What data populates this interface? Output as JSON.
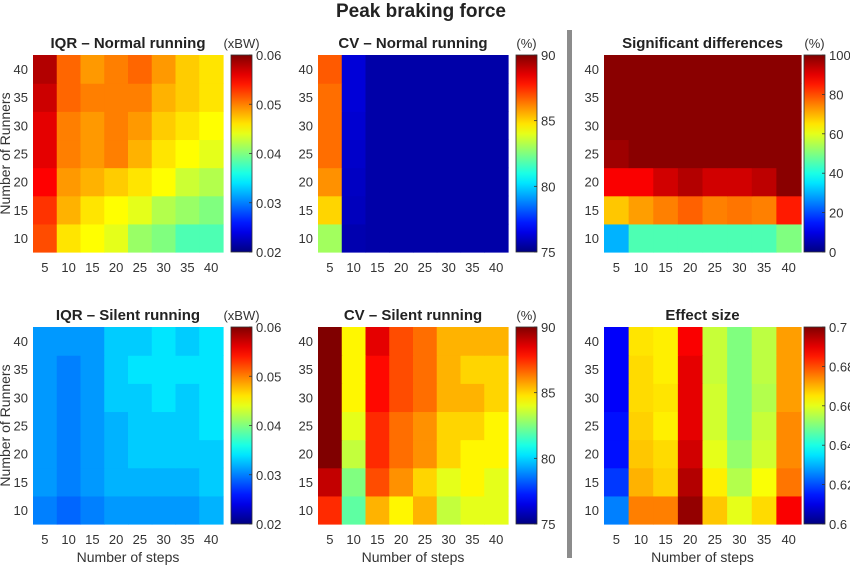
{
  "figure": {
    "title": "Peak braking force",
    "divider_color": "#8c8c8c"
  },
  "chart_data": [
    {
      "type": "heatmap",
      "title": "IQR – Normal running",
      "unit": "(xBW)",
      "xlabel": "",
      "ylabel": "Number of Runners",
      "x": [
        5,
        10,
        15,
        20,
        25,
        30,
        35,
        40
      ],
      "y": [
        10,
        15,
        20,
        25,
        30,
        35,
        40
      ],
      "clim": [
        0.02,
        0.06
      ],
      "colorbar_ticks": [
        "0.02",
        "0.03",
        "0.04",
        "0.05",
        "0.06"
      ],
      "values": [
        [
          0.052,
          0.046,
          0.045,
          0.044,
          0.041,
          0.04,
          0.038,
          0.038
        ],
        [
          0.053,
          0.048,
          0.046,
          0.045,
          0.044,
          0.042,
          0.041,
          0.04
        ],
        [
          0.055,
          0.049,
          0.048,
          0.047,
          0.046,
          0.045,
          0.043,
          0.042
        ],
        [
          0.056,
          0.05,
          0.049,
          0.05,
          0.048,
          0.046,
          0.045,
          0.044
        ],
        [
          0.056,
          0.05,
          0.049,
          0.05,
          0.049,
          0.047,
          0.046,
          0.045
        ],
        [
          0.057,
          0.051,
          0.05,
          0.05,
          0.05,
          0.048,
          0.047,
          0.046
        ],
        [
          0.058,
          0.051,
          0.049,
          0.05,
          0.051,
          0.049,
          0.047,
          0.046
        ]
      ]
    },
    {
      "type": "heatmap",
      "title": "CV – Normal running",
      "unit": "(%)",
      "xlabel": "",
      "ylabel": "",
      "x": [
        5,
        10,
        15,
        20,
        25,
        30,
        35,
        40
      ],
      "y": [
        10,
        15,
        20,
        25,
        30,
        35,
        40
      ],
      "clim": [
        75,
        90
      ],
      "colorbar_ticks": [
        "75",
        "80",
        "85",
        "90"
      ],
      "values": [
        [
          83.0,
          75.7,
          75.6,
          75.6,
          75.6,
          75.6,
          75.6,
          75.6
        ],
        [
          85.0,
          75.9,
          75.6,
          75.6,
          75.6,
          75.6,
          75.6,
          75.6
        ],
        [
          86.0,
          76.0,
          75.6,
          75.6,
          75.6,
          75.6,
          75.6,
          75.6
        ],
        [
          86.5,
          76.1,
          75.6,
          75.6,
          75.6,
          75.6,
          75.6,
          75.6
        ],
        [
          86.5,
          76.2,
          75.6,
          75.6,
          75.6,
          75.6,
          75.6,
          75.6
        ],
        [
          86.5,
          76.3,
          75.6,
          75.6,
          75.6,
          75.6,
          75.6,
          75.6
        ],
        [
          86.8,
          76.3,
          75.6,
          75.6,
          75.6,
          75.6,
          75.6,
          75.6
        ]
      ]
    },
    {
      "type": "heatmap",
      "title": "Significant differences",
      "unit": "(%)",
      "xlabel": "",
      "ylabel": "",
      "x": [
        5,
        10,
        15,
        20,
        25,
        30,
        35,
        40
      ],
      "y": [
        10,
        15,
        20,
        25,
        30,
        35,
        40
      ],
      "clim": [
        0,
        100
      ],
      "colorbar_ticks": [
        "0",
        "20",
        "40",
        "60",
        "80",
        "100"
      ],
      "values": [
        [
          30,
          45,
          45,
          45,
          45,
          45,
          45,
          50
        ],
        [
          68,
          72,
          75,
          78,
          75,
          76,
          75,
          85
        ],
        [
          88,
          88,
          92,
          95,
          92,
          92,
          94,
          99
        ],
        [
          97,
          99,
          99,
          99,
          99,
          99,
          99,
          99
        ],
        [
          99,
          99,
          99,
          99,
          99,
          99,
          99,
          99
        ],
        [
          99,
          99,
          99,
          99,
          99,
          99,
          99,
          99
        ],
        [
          99,
          99,
          99,
          99,
          99,
          99,
          99,
          99
        ]
      ]
    },
    {
      "type": "heatmap",
      "title": "IQR – Silent running",
      "unit": "(xBW)",
      "xlabel": "Number of steps",
      "ylabel": "Number of Runners",
      "x": [
        5,
        10,
        15,
        20,
        25,
        30,
        35,
        40
      ],
      "y": [
        10,
        15,
        20,
        25,
        30,
        35,
        40
      ],
      "clim": [
        0.02,
        0.06
      ],
      "colorbar_ticks": [
        "0.02",
        "0.03",
        "0.04",
        "0.05",
        "0.06"
      ],
      "values": [
        [
          0.03,
          0.029,
          0.03,
          0.031,
          0.031,
          0.031,
          0.031,
          0.032
        ],
        [
          0.031,
          0.03,
          0.031,
          0.032,
          0.032,
          0.032,
          0.032,
          0.033
        ],
        [
          0.031,
          0.03,
          0.031,
          0.032,
          0.033,
          0.033,
          0.033,
          0.033
        ],
        [
          0.031,
          0.03,
          0.031,
          0.032,
          0.033,
          0.033,
          0.033,
          0.034
        ],
        [
          0.031,
          0.03,
          0.031,
          0.033,
          0.033,
          0.034,
          0.033,
          0.034
        ],
        [
          0.031,
          0.03,
          0.031,
          0.033,
          0.034,
          0.034,
          0.034,
          0.034
        ],
        [
          0.031,
          0.031,
          0.031,
          0.033,
          0.033,
          0.034,
          0.033,
          0.034
        ]
      ]
    },
    {
      "type": "heatmap",
      "title": "CV – Silent running",
      "unit": "(%)",
      "xlabel": "Number of steps",
      "ylabel": "",
      "x": [
        5,
        10,
        15,
        20,
        25,
        30,
        35,
        40
      ],
      "y": [
        10,
        15,
        20,
        25,
        30,
        35,
        40
      ],
      "clim": [
        75,
        90
      ],
      "colorbar_ticks": [
        "75",
        "80",
        "85",
        "90"
      ],
      "values": [
        [
          87.5,
          82.0,
          85.5,
          84.5,
          85.5,
          83.5,
          84.0,
          84.0
        ],
        [
          89.0,
          82.5,
          87.0,
          86.0,
          85.0,
          84.0,
          84.5,
          84.0
        ],
        [
          90.0,
          83.5,
          87.5,
          86.5,
          86.0,
          85.0,
          84.5,
          84.5
        ],
        [
          90.0,
          84.0,
          87.5,
          86.5,
          86.0,
          85.0,
          85.0,
          84.5
        ],
        [
          90.0,
          84.5,
          88.0,
          87.0,
          86.5,
          85.5,
          85.5,
          85.0
        ],
        [
          90.0,
          84.5,
          88.0,
          87.0,
          86.5,
          85.5,
          85.0,
          85.0
        ],
        [
          90.0,
          84.5,
          88.5,
          87.0,
          86.5,
          85.5,
          85.5,
          85.5
        ]
      ]
    },
    {
      "type": "heatmap",
      "title": "Effect size",
      "unit": "",
      "xlabel": "Number of steps",
      "ylabel": "",
      "x": [
        5,
        10,
        15,
        20,
        25,
        30,
        35,
        40
      ],
      "y": [
        10,
        15,
        20,
        25,
        30,
        35,
        40
      ],
      "clim": [
        0.6,
        0.7
      ],
      "colorbar_ticks": [
        "0.6",
        "0.62",
        "0.64",
        "0.66",
        "0.68",
        "0.7"
      ],
      "values": [
        [
          0.625,
          0.675,
          0.675,
          0.698,
          0.668,
          0.66,
          0.666,
          0.688
        ],
        [
          0.618,
          0.67,
          0.667,
          0.695,
          0.664,
          0.655,
          0.662,
          0.676
        ],
        [
          0.614,
          0.668,
          0.666,
          0.692,
          0.66,
          0.652,
          0.658,
          0.674
        ],
        [
          0.614,
          0.667,
          0.664,
          0.69,
          0.658,
          0.65,
          0.657,
          0.674
        ],
        [
          0.612,
          0.666,
          0.665,
          0.69,
          0.658,
          0.65,
          0.655,
          0.672
        ],
        [
          0.612,
          0.666,
          0.664,
          0.69,
          0.657,
          0.65,
          0.656,
          0.672
        ],
        [
          0.612,
          0.665,
          0.664,
          0.688,
          0.657,
          0.65,
          0.656,
          0.672
        ]
      ]
    }
  ]
}
